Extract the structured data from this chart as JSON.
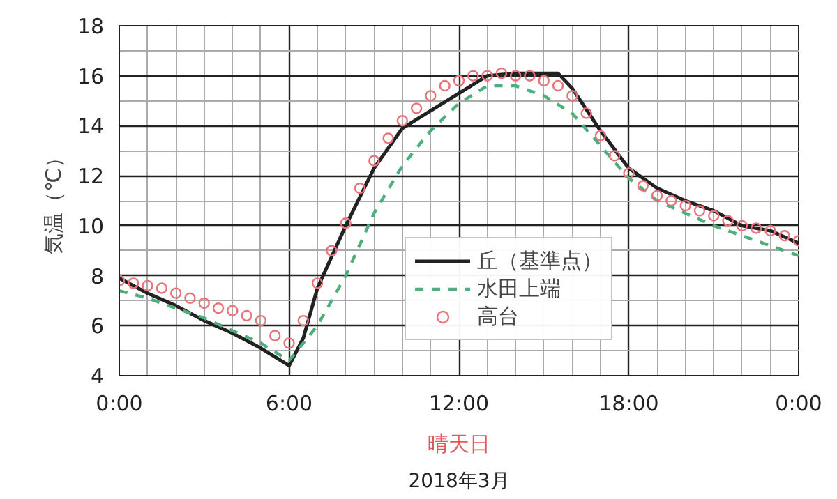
{
  "chart_data": {
    "type": "line",
    "xlabel": "晴天日",
    "ylabel": "気温（℃）",
    "annotations": [
      "2018年3月"
    ],
    "xlim": [
      0,
      24
    ],
    "ylim": [
      4,
      18
    ],
    "xticks": [
      {
        "value": 0,
        "label": "0:00"
      },
      {
        "value": 6,
        "label": "6:00"
      },
      {
        "value": 12,
        "label": "12:00"
      },
      {
        "value": 18,
        "label": "18:00"
      },
      {
        "value": 24,
        "label": "0:00"
      }
    ],
    "yticks": [
      4,
      6,
      8,
      10,
      12,
      14,
      16,
      18
    ],
    "grid": true,
    "legend": "bottom",
    "series": [
      {
        "name": "丘（基準点）",
        "color": "#222222",
        "line_style": "solid",
        "x": [
          0,
          1,
          2,
          3,
          4,
          5,
          6,
          6.5,
          7,
          8,
          9,
          10,
          11,
          12,
          13,
          14,
          15,
          15.5,
          16,
          17,
          18,
          19,
          20,
          21,
          22,
          23,
          24
        ],
        "values": [
          7.9,
          7.3,
          6.8,
          6.2,
          5.7,
          5.1,
          4.4,
          5.5,
          7.5,
          10.0,
          12.3,
          13.9,
          14.6,
          15.3,
          16.0,
          16.1,
          16.1,
          16.1,
          15.5,
          13.8,
          12.3,
          11.5,
          11.0,
          10.6,
          10.0,
          9.8,
          9.3
        ]
      },
      {
        "name": "水田上端",
        "color": "#4daf7c",
        "line_style": "dashed",
        "x": [
          0,
          1,
          2,
          3,
          4,
          5,
          6,
          7,
          8,
          9,
          10,
          11,
          12,
          13,
          14,
          15,
          16,
          17,
          18,
          19,
          20,
          21,
          22,
          23,
          24
        ],
        "values": [
          7.4,
          7.1,
          6.7,
          6.3,
          5.8,
          5.3,
          4.6,
          6.0,
          8.0,
          10.5,
          12.4,
          13.8,
          14.9,
          15.6,
          15.6,
          15.2,
          14.5,
          13.2,
          11.9,
          11.0,
          10.5,
          10.0,
          9.6,
          9.2,
          8.8
        ]
      },
      {
        "name": "高台",
        "color": "#e8737a",
        "type": "scatter",
        "marker": "circle",
        "x": [
          0,
          0.5,
          1,
          1.5,
          2,
          2.5,
          3,
          3.5,
          4,
          4.5,
          5,
          5.5,
          6,
          6.5,
          7,
          7.5,
          8,
          8.5,
          9,
          9.5,
          10,
          10.5,
          11,
          11.5,
          12,
          12.5,
          13,
          13.5,
          14,
          14.5,
          15,
          15.5,
          16,
          16.5,
          17,
          17.5,
          18,
          18.5,
          19,
          19.5,
          20,
          20.5,
          21,
          21.5,
          22,
          22.5,
          23,
          23.5,
          24
        ],
        "values": [
          7.8,
          7.7,
          7.6,
          7.5,
          7.3,
          7.1,
          6.9,
          6.7,
          6.6,
          6.4,
          6.2,
          5.6,
          5.3,
          6.2,
          7.7,
          9.0,
          10.1,
          11.5,
          12.6,
          13.5,
          14.2,
          14.7,
          15.2,
          15.6,
          15.8,
          16.0,
          16.0,
          16.1,
          16.0,
          16.0,
          15.8,
          15.6,
          15.2,
          14.5,
          13.6,
          12.8,
          12.1,
          11.6,
          11.2,
          11.0,
          10.8,
          10.6,
          10.4,
          10.2,
          10.0,
          9.9,
          9.8,
          9.6,
          9.4
        ]
      }
    ]
  }
}
